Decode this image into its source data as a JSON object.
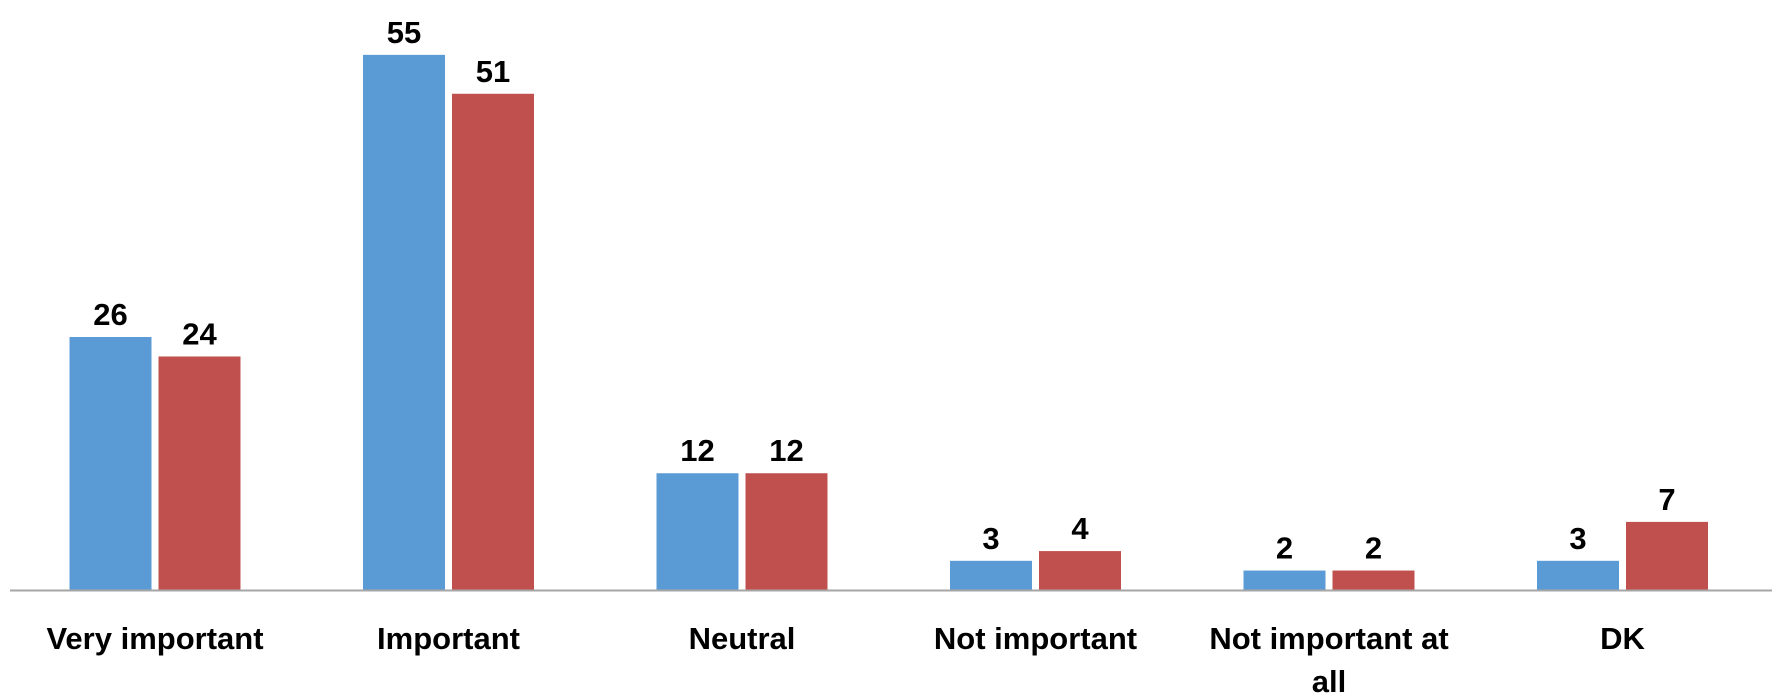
{
  "chart_data": {
    "type": "bar",
    "categories": [
      "Very important",
      "Important",
      "Neutral",
      "Not important",
      "Not important at all",
      "DK"
    ],
    "series": [
      {
        "values": [
          26,
          55,
          12,
          3,
          2,
          3
        ],
        "color": "#5B9BD5"
      },
      {
        "values": [
          24,
          51,
          12,
          4,
          2,
          7
        ],
        "color": "#C0504D"
      }
    ],
    "ylim": [
      0,
      55
    ],
    "grid": false,
    "data_labels": true,
    "axis_color": "#A6A6A6"
  }
}
